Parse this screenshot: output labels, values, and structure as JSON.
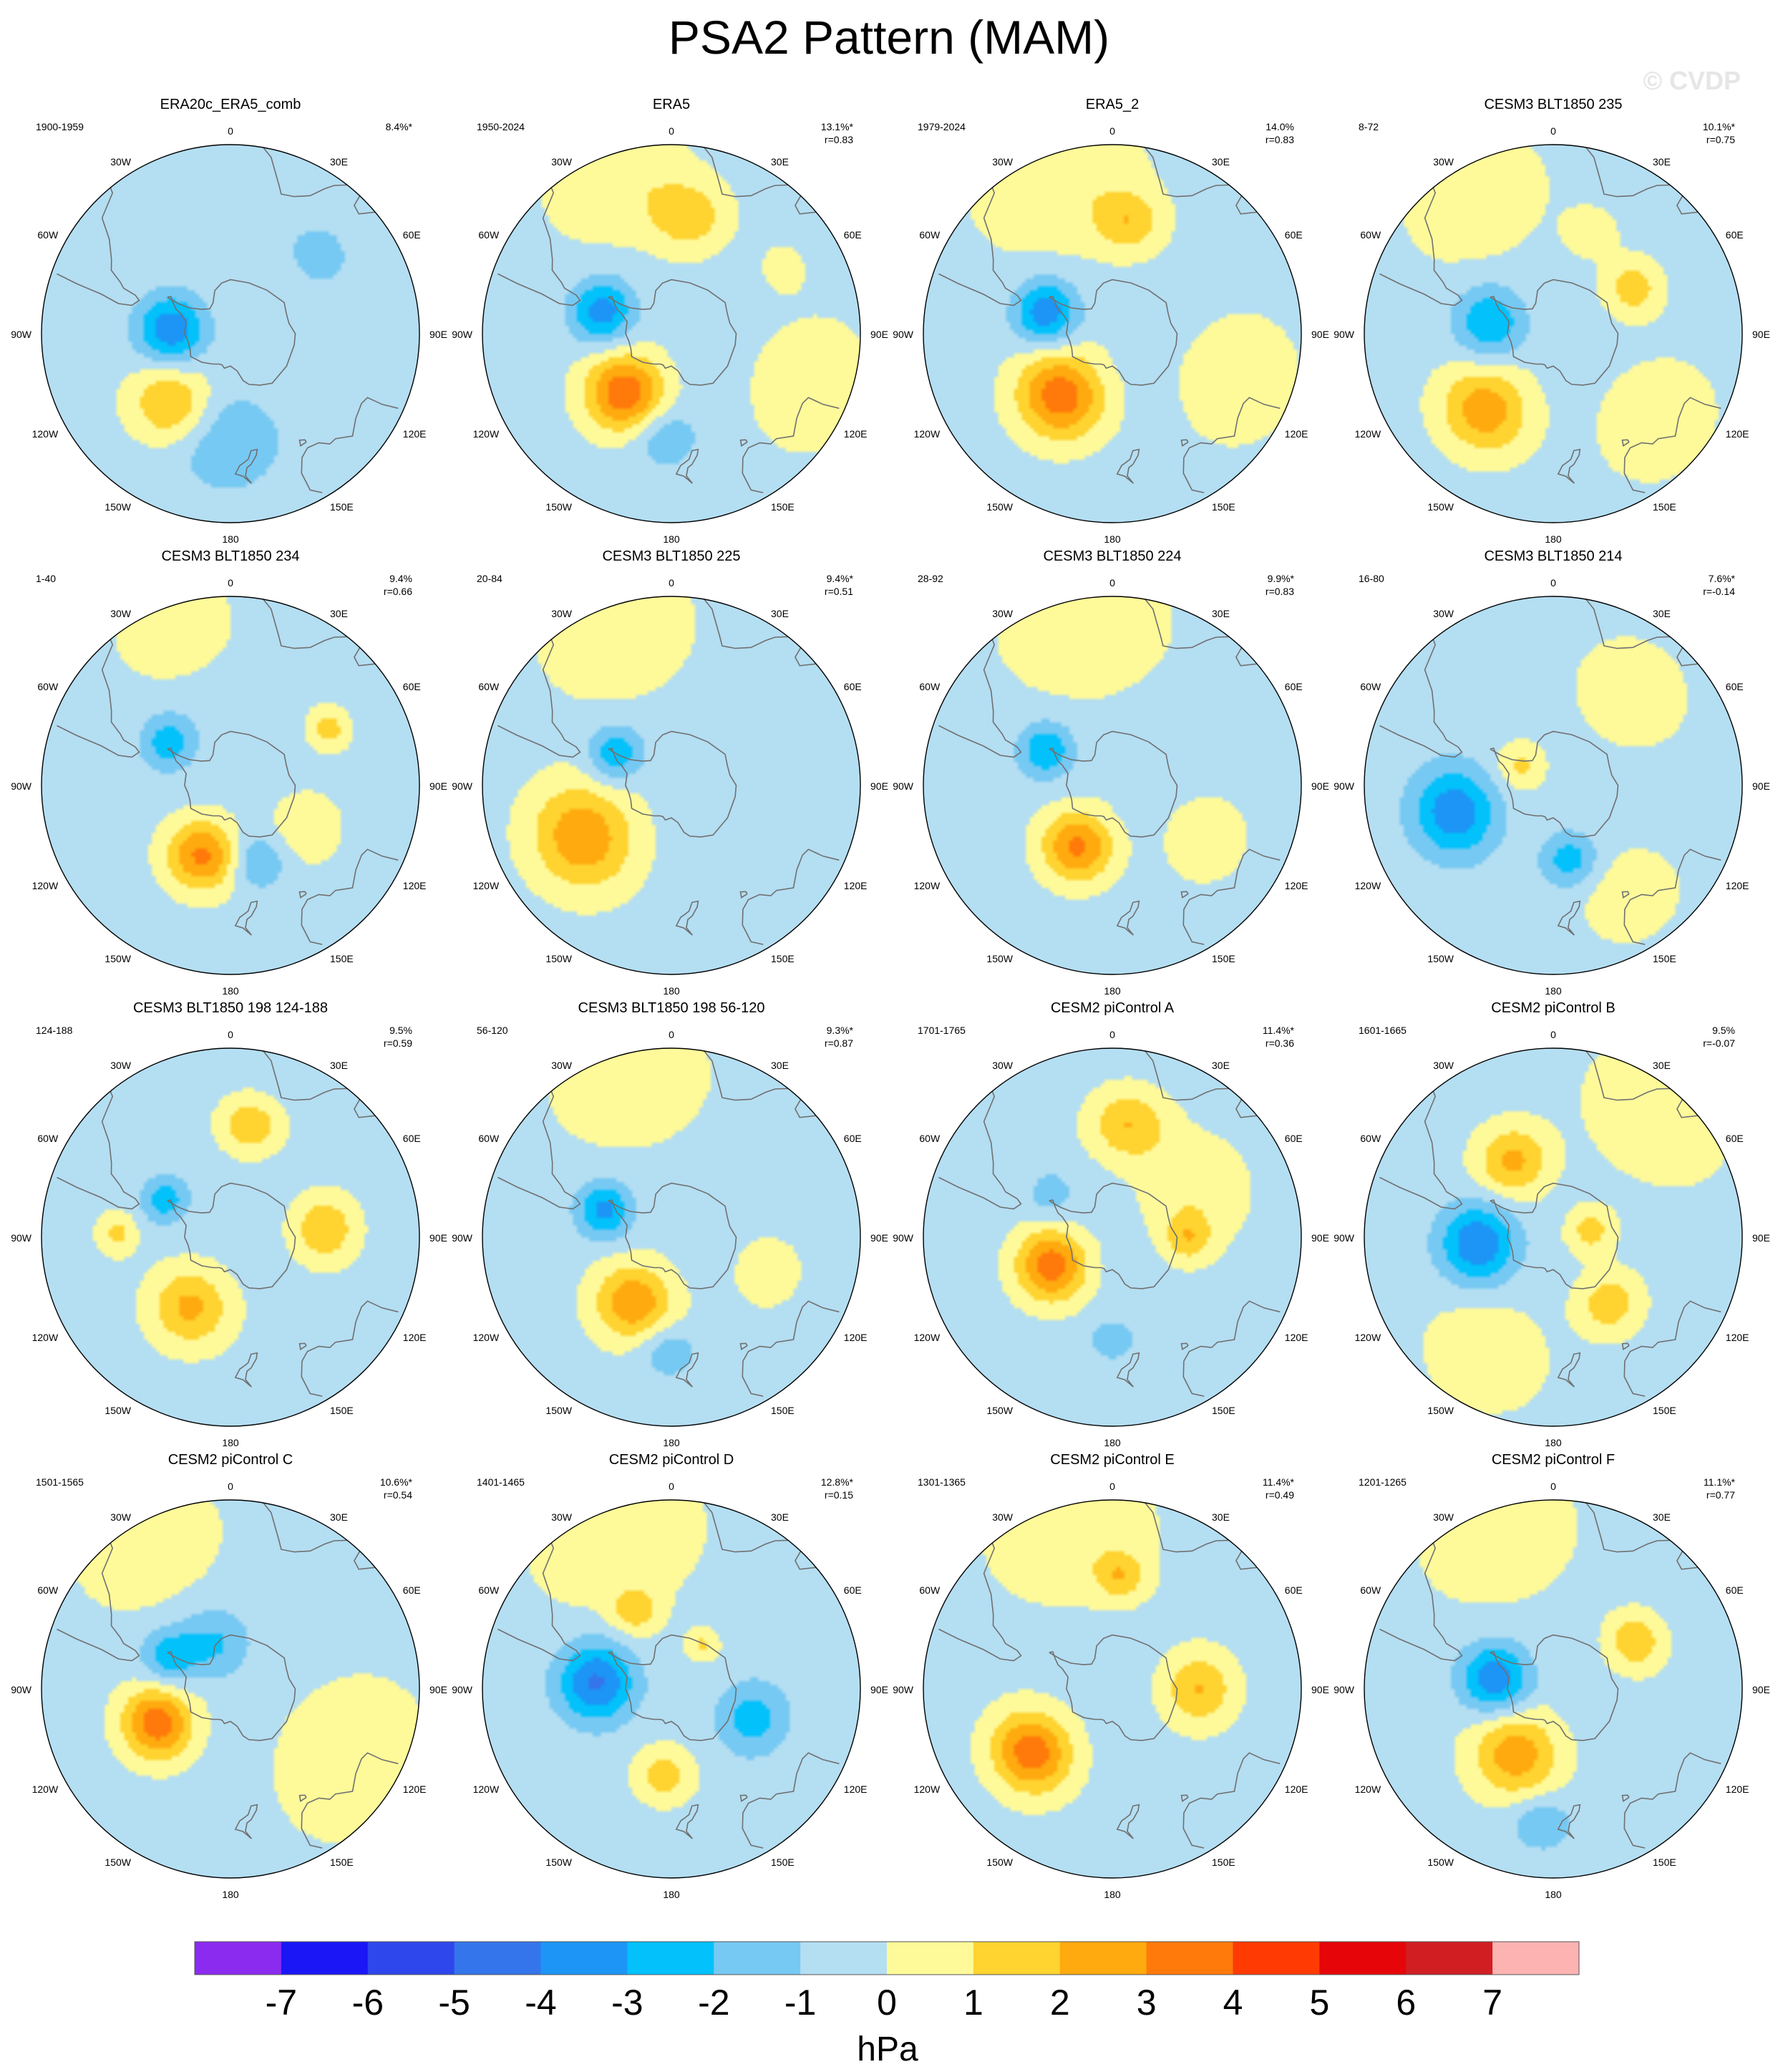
{
  "title": "PSA2 Pattern (MAM)",
  "watermark": "© CVDP",
  "colorbar": {
    "unit": "hPa",
    "tick_labels": [
      "-7",
      "-6",
      "-5",
      "-4",
      "-3",
      "-2",
      "-1",
      "0",
      "1",
      "2",
      "3",
      "4",
      "5",
      "6",
      "7"
    ],
    "colors": [
      "#8B2BF0",
      "#1A16F6",
      "#2E47EC",
      "#3575EB",
      "#1C95F6",
      "#02C1FB",
      "#76C9F3",
      "#B4DEF2",
      "#FEFA9A",
      "#FFD330",
      "#FFAA0E",
      "#FF7A0A",
      "#FF3A02",
      "#E60508",
      "#D01E23",
      "#FCB3B2"
    ]
  },
  "chart_data": {
    "type": "heatmap",
    "projection": "south-polar stereographic",
    "levels": [
      -7,
      -6,
      -5,
      -4,
      -3,
      -2,
      -1,
      0,
      1,
      2,
      3,
      4,
      5,
      6,
      7
    ],
    "lon_labels": [
      "0",
      "30E",
      "60E",
      "90E",
      "120E",
      "150E",
      "180",
      "150W",
      "120W",
      "90W",
      "60W",
      "30W"
    ],
    "panels": [
      {
        "name": "ERA20c_ERA5_comb",
        "years": "1900-1959",
        "pct": "8.4%*",
        "r": "",
        "blobs": [
          {
            "lon": -86,
            "lat": -68,
            "amp": -3.4,
            "sig": 9
          },
          {
            "lon": -140,
            "lat": -56,
            "amp": 2.6,
            "sig": 10
          },
          {
            "lon": -178,
            "lat": -50,
            "amp": -1.6,
            "sig": 13
          },
          {
            "lon": 48,
            "lat": -46,
            "amp": -1.4,
            "sig": 7
          }
        ]
      },
      {
        "name": "ERA5",
        "years": "1950-2024",
        "pct": "13.1%*",
        "r": "r=0.83",
        "blobs": [
          {
            "lon": -72,
            "lat": -63,
            "amp": -3.2,
            "sig": 8
          },
          {
            "lon": -142,
            "lat": -62,
            "amp": 4.2,
            "sig": 10
          },
          {
            "lon": -176,
            "lat": -52,
            "amp": -1.6,
            "sig": 8
          },
          {
            "lon": 8,
            "lat": -46,
            "amp": 2.0,
            "sig": 9
          },
          {
            "lon": 60,
            "lat": -42,
            "amp": 1.1,
            "sig": 5
          },
          {
            "lon": -20,
            "lat": -30,
            "amp": 1.2,
            "sig": 15
          },
          {
            "lon": 110,
            "lat": -35,
            "amp": 1.2,
            "sig": 14
          }
        ]
      },
      {
        "name": "ERA5_2",
        "years": "1979-2024",
        "pct": "14.0%",
        "r": "r=0.83",
        "blobs": [
          {
            "lon": -72,
            "lat": -64,
            "amp": -3.4,
            "sig": 8
          },
          {
            "lon": -140,
            "lat": -60,
            "amp": 4.0,
            "sig": 11
          },
          {
            "lon": 8,
            "lat": -48,
            "amp": 2.0,
            "sig": 8
          },
          {
            "lon": -20,
            "lat": -30,
            "amp": 1.2,
            "sig": 18
          },
          {
            "lon": 110,
            "lat": -40,
            "amp": 1.2,
            "sig": 14
          }
        ]
      },
      {
        "name": "CESM3 BLT1850 235",
        "years": "8-72",
        "pct": "10.1%*",
        "r": "r=0.75",
        "blobs": [
          {
            "lon": -80,
            "lat": -66,
            "amp": -2.6,
            "sig": 9
          },
          {
            "lon": -138,
            "lat": -52,
            "amp": 3.0,
            "sig": 11
          },
          {
            "lon": 60,
            "lat": -56,
            "amp": 2.0,
            "sig": 7
          },
          {
            "lon": 20,
            "lat": -50,
            "amp": 1.2,
            "sig": 6
          },
          {
            "lon": -30,
            "lat": -32,
            "amp": 1.2,
            "sig": 15
          },
          {
            "lon": 130,
            "lat": -40,
            "amp": 1.1,
            "sig": 14
          }
        ]
      },
      {
        "name": "CESM3 BLT1850 234",
        "years": "1-40",
        "pct": "9.4%",
        "r": "r=0.66",
        "blobs": [
          {
            "lon": -55,
            "lat": -62,
            "amp": -2.3,
            "sig": 7
          },
          {
            "lon": -158,
            "lat": -62,
            "amp": 3.6,
            "sig": 9
          },
          {
            "lon": 160,
            "lat": -60,
            "amp": -1.8,
            "sig": 7
          },
          {
            "lon": 60,
            "lat": -48,
            "amp": 1.8,
            "sig": 5
          },
          {
            "lon": 120,
            "lat": -58,
            "amp": 1.1,
            "sig": 9
          },
          {
            "lon": -20,
            "lat": -28,
            "amp": 1.1,
            "sig": 12
          }
        ]
      },
      {
        "name": "CESM3 BLT1850 225",
        "years": "20-84",
        "pct": "9.4%*",
        "r": "r=0.51",
        "blobs": [
          {
            "lon": -60,
            "lat": -66,
            "amp": -2.4,
            "sig": 7
          },
          {
            "lon": -120,
            "lat": -52,
            "amp": 3.2,
            "sig": 13
          },
          {
            "lon": -20,
            "lat": -30,
            "amp": 1.2,
            "sig": 16
          }
        ]
      },
      {
        "name": "CESM3 BLT1850 224",
        "years": "28-92",
        "pct": "9.9%*",
        "r": "r=0.83",
        "blobs": [
          {
            "lon": -62,
            "lat": -62,
            "amp": -2.6,
            "sig": 7
          },
          {
            "lon": -150,
            "lat": -64,
            "amp": 3.6,
            "sig": 9
          },
          {
            "lon": -10,
            "lat": -30,
            "amp": 1.1,
            "sig": 18
          },
          {
            "lon": 120,
            "lat": -50,
            "amp": 1.1,
            "sig": 10
          }
        ]
      },
      {
        "name": "CESM3 BLT1850 214",
        "years": "16-80",
        "pct": "7.6%*",
        "r": "r=-0.14",
        "blobs": [
          {
            "lon": -105,
            "lat": -52,
            "amp": -3.4,
            "sig": 11
          },
          {
            "lon": 168,
            "lat": -62,
            "amp": -2.2,
            "sig": 7
          },
          {
            "lon": -60,
            "lat": -76,
            "amp": 1.6,
            "sig": 6
          },
          {
            "lon": 40,
            "lat": -45,
            "amp": 1.1,
            "sig": 13
          },
          {
            "lon": 145,
            "lat": -40,
            "amp": 1.1,
            "sig": 11
          }
        ]
      },
      {
        "name": "CESM3 BLT1850 198 124-188",
        "years": "124-188",
        "pct": "9.5%",
        "r": "r=0.59",
        "blobs": [
          {
            "lon": -60,
            "lat": -62,
            "amp": -2.2,
            "sig": 6
          },
          {
            "lon": -150,
            "lat": -60,
            "amp": 2.6,
            "sig": 10
          },
          {
            "lon": 85,
            "lat": -55,
            "amp": 2.3,
            "sig": 8
          },
          {
            "lon": 10,
            "lat": -48,
            "amp": 2.2,
            "sig": 7
          },
          {
            "lon": -88,
            "lat": -48,
            "amp": 1.6,
            "sig": 5
          }
        ]
      },
      {
        "name": "CESM3 BLT1850 198 56-120",
        "years": "56-120",
        "pct": "9.3%*",
        "r": "r=0.87",
        "blobs": [
          {
            "lon": -68,
            "lat": -63,
            "amp": -3.0,
            "sig": 7
          },
          {
            "lon": -150,
            "lat": -62,
            "amp": 3.2,
            "sig": 10
          },
          {
            "lon": -178,
            "lat": -48,
            "amp": -1.5,
            "sig": 7
          },
          {
            "lon": -15,
            "lat": -30,
            "amp": 1.2,
            "sig": 16
          },
          {
            "lon": 110,
            "lat": -52,
            "amp": 1.1,
            "sig": 8
          }
        ]
      },
      {
        "name": "CESM2 piControl A",
        "years": "1701-1765",
        "pct": "11.4%*",
        "r": "r=0.36",
        "blobs": [
          {
            "lon": -115,
            "lat": -65,
            "amp": 4.0,
            "sig": 9
          },
          {
            "lon": 8,
            "lat": -48,
            "amp": 2.3,
            "sig": 9
          },
          {
            "lon": 90,
            "lat": -62,
            "amp": 1.9,
            "sig": 6
          },
          {
            "lon": -180,
            "lat": -52,
            "amp": -1.6,
            "sig": 5
          },
          {
            "lon": -55,
            "lat": -62,
            "amp": -1.2,
            "sig": 6
          },
          {
            "lon": 60,
            "lat": -55,
            "amp": 1.1,
            "sig": 14
          }
        ]
      },
      {
        "name": "CESM2 piControl B",
        "years": "1601-1665",
        "pct": "9.5%",
        "r": "r=-0.07",
        "blobs": [
          {
            "lon": -28,
            "lat": -58,
            "amp": 2.6,
            "sig": 9
          },
          {
            "lon": -95,
            "lat": -62,
            "amp": -3.6,
            "sig": 10
          },
          {
            "lon": 140,
            "lat": -58,
            "amp": 2.0,
            "sig": 8
          },
          {
            "lon": 80,
            "lat": -76,
            "amp": 1.8,
            "sig": 6
          },
          {
            "lon": 40,
            "lat": -30,
            "amp": 1.2,
            "sig": 16
          },
          {
            "lon": -150,
            "lat": -40,
            "amp": 1.1,
            "sig": 14
          }
        ]
      },
      {
        "name": "CESM2 piControl C",
        "years": "1501-1565",
        "pct": "10.6%*",
        "r": "r=0.54",
        "blobs": [
          {
            "lon": -62,
            "lat": -64,
            "amp": -2.2,
            "sig": 7
          },
          {
            "lon": -20,
            "lat": -72,
            "amp": -1.8,
            "sig": 9
          },
          {
            "lon": -115,
            "lat": -60,
            "amp": 4.0,
            "sig": 9
          },
          {
            "lon": 120,
            "lat": -38,
            "amp": 1.2,
            "sig": 18
          },
          {
            "lon": -30,
            "lat": -28,
            "amp": 1.2,
            "sig": 15
          }
        ]
      },
      {
        "name": "CESM2 piControl D",
        "years": "1401-1465",
        "pct": "12.8%*",
        "r": "r=0.15",
        "blobs": [
          {
            "lon": -85,
            "lat": -62,
            "amp": -3.8,
            "sig": 10
          },
          {
            "lon": -25,
            "lat": -58,
            "amp": 1.8,
            "sig": 6
          },
          {
            "lon": 110,
            "lat": -58,
            "amp": -2.2,
            "sig": 9
          },
          {
            "lon": -175,
            "lat": -58,
            "amp": 1.9,
            "sig": 7
          },
          {
            "lon": 35,
            "lat": -70,
            "amp": 1.5,
            "sig": 4
          },
          {
            "lon": -20,
            "lat": -30,
            "amp": 1.2,
            "sig": 18
          }
        ]
      },
      {
        "name": "CESM2 piControl E",
        "years": "1301-1365",
        "pct": "11.4%*",
        "r": "r=0.49",
        "blobs": [
          {
            "lon": -128,
            "lat": -52,
            "amp": 4.0,
            "sig": 10
          },
          {
            "lon": 90,
            "lat": -58,
            "amp": 2.4,
            "sig": 9
          },
          {
            "lon": 4,
            "lat": -48,
            "amp": 2.0,
            "sig": 6
          },
          {
            "lon": -15,
            "lat": -30,
            "amp": 1.1,
            "sig": 18
          }
        ]
      },
      {
        "name": "CESM2 piControl F",
        "years": "1201-1265",
        "pct": "11.1%*",
        "r": "r=0.77",
        "blobs": [
          {
            "lon": -80,
            "lat": -68,
            "amp": -3.4,
            "sig": 9
          },
          {
            "lon": -150,
            "lat": -62,
            "amp": 3.0,
            "sig": 11
          },
          {
            "lon": 60,
            "lat": -55,
            "amp": 2.2,
            "sig": 7
          },
          {
            "lon": -175,
            "lat": -40,
            "amp": -1.6,
            "sig": 7
          },
          {
            "lon": -20,
            "lat": -30,
            "amp": 1.2,
            "sig": 16
          }
        ]
      }
    ]
  }
}
